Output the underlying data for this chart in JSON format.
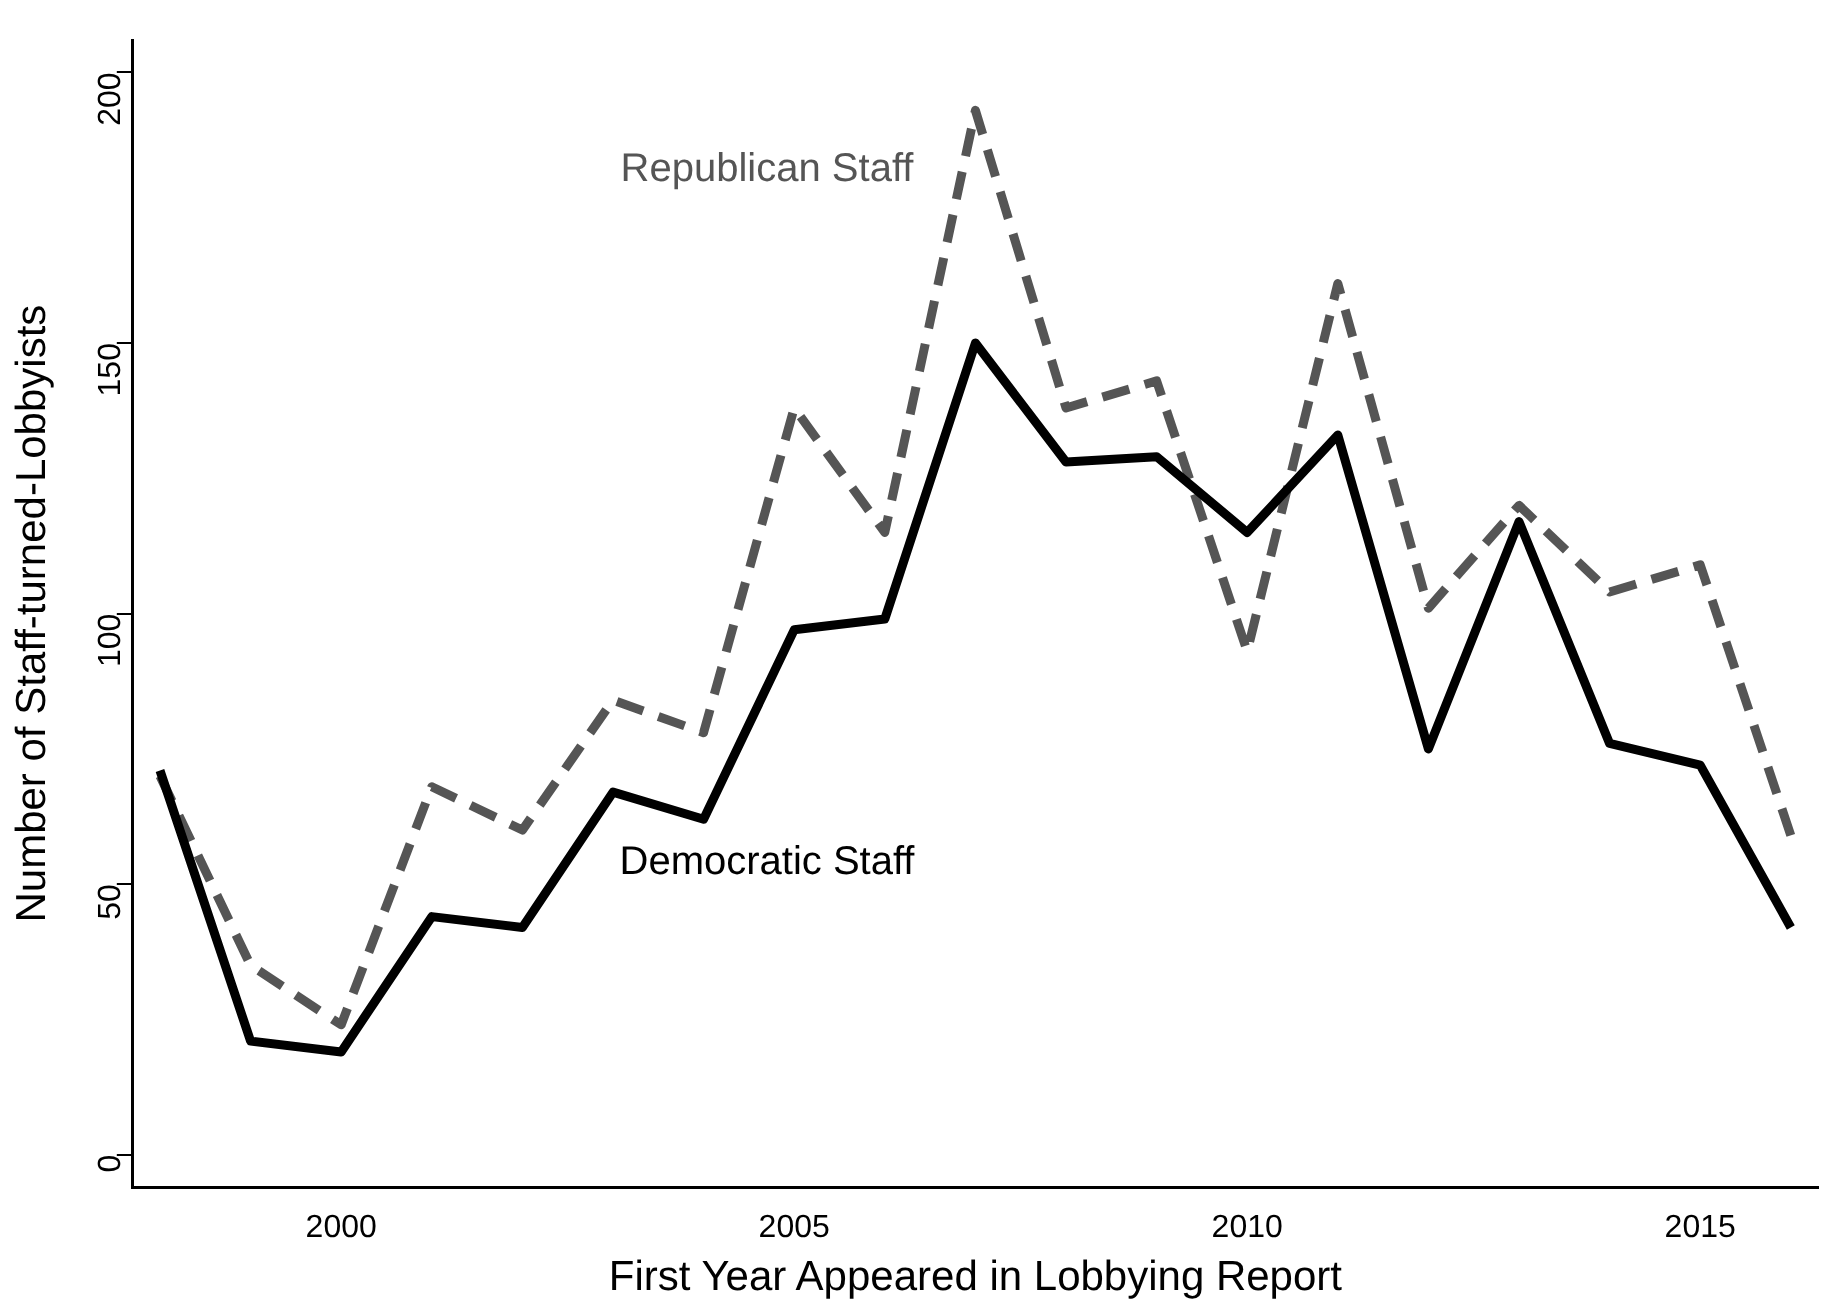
{
  "chart_data": {
    "type": "line",
    "xlabel": "First Year Appeared in Lobbying Report",
    "ylabel": "Number of Staff-turned-Lobbyists",
    "x": [
      1998,
      1999,
      2000,
      2001,
      2002,
      2003,
      2004,
      2005,
      2006,
      2007,
      2008,
      2009,
      2010,
      2011,
      2012,
      2013,
      2014,
      2015,
      2016
    ],
    "series": [
      {
        "name": "Democratic Staff",
        "color": "#000000",
        "line_style": "solid",
        "values": [
          71,
          21,
          19,
          44,
          42,
          67,
          62,
          97,
          99,
          150,
          128,
          129,
          115,
          133,
          75,
          117,
          76,
          72,
          42
        ]
      },
      {
        "name": "Republican Staff",
        "color": "#555555",
        "line_style": "dashed",
        "values": [
          70,
          35,
          24,
          68,
          60,
          84,
          78,
          138,
          115,
          193,
          138,
          143,
          93,
          161,
          101,
          120,
          104,
          109,
          59
        ]
      }
    ],
    "xlim": [
      1997.7,
      2016.3
    ],
    "xticks": [
      2000,
      2005,
      2010,
      2015
    ],
    "ylim": [
      -6,
      206
    ],
    "yticks": [
      0,
      50,
      100,
      150,
      200
    ],
    "grid": false,
    "legend": false,
    "marker": "none"
  }
}
